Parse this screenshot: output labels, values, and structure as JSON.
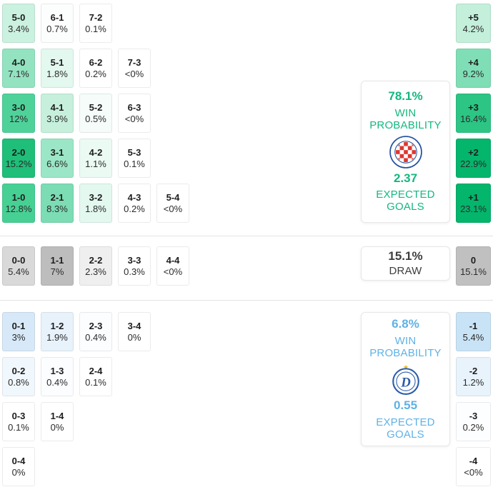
{
  "chart_data": {
    "type": "heatmap",
    "title": "Correct score probability matrix with win probabilities and expected goals",
    "home_win": {
      "win_probability": "78.1%",
      "expected_goals": "2.37",
      "scores": {
        "5-0": "3.4%",
        "6-1": "0.7%",
        "7-2": "0.1%",
        "4-0": "7.1%",
        "5-1": "1.8%",
        "6-2": "0.2%",
        "7-3": "<0%",
        "3-0": "12%",
        "4-1": "3.9%",
        "5-2": "0.5%",
        "6-3": "<0%",
        "2-0": "15.2%",
        "3-1": "6.6%",
        "4-2": "1.1%",
        "5-3": "0.1%",
        "1-0": "12.8%",
        "2-1": "8.3%",
        "3-2": "1.8%",
        "4-3": "0.2%",
        "5-4": "<0%"
      },
      "margins": {
        "+5": "4.2%",
        "+4": "9.2%",
        "+3": "16.4%",
        "+2": "22.9%",
        "+1": "23.1%"
      }
    },
    "draw": {
      "probability": "15.1%",
      "scores": {
        "0-0": "5.4%",
        "1-1": "7%",
        "2-2": "2.3%",
        "3-3": "0.3%",
        "4-4": "<0%"
      },
      "margins": {
        "0": "15.1%"
      }
    },
    "away_win": {
      "win_probability": "6.8%",
      "expected_goals": "0.55",
      "scores": {
        "0-1": "3%",
        "1-2": "1.9%",
        "2-3": "0.4%",
        "3-4": "0%",
        "0-2": "0.8%",
        "1-3": "0.4%",
        "2-4": "0.1%",
        "0-3": "0.1%",
        "1-4": "0%",
        "0-4": "0%"
      },
      "margins": {
        "-1": "5.4%",
        "-2": "1.2%",
        "-3": "0.2%",
        "-4": "<0%"
      }
    }
  },
  "sections": [
    {
      "id": "home-win",
      "rows": [
        {
          "cells": [
            {
              "score": "5-0",
              "pct": "3.4%",
              "bg": "#cbf1e0"
            },
            {
              "score": "6-1",
              "pct": "0.7%",
              "bg": "#fcfefd"
            },
            {
              "score": "7-2",
              "pct": "0.1%",
              "bg": "#ffffff"
            }
          ],
          "margin": {
            "label": "+5",
            "pct": "4.2%",
            "bg": "#c3efdb"
          }
        },
        {
          "cells": [
            {
              "score": "4-0",
              "pct": "7.1%",
              "bg": "#93e3c1"
            },
            {
              "score": "5-1",
              "pct": "1.8%",
              "bg": "#e3f8ef"
            },
            {
              "score": "6-2",
              "pct": "0.2%",
              "bg": "#ffffff"
            },
            {
              "score": "7-3",
              "pct": "<0%",
              "bg": "#ffffff"
            }
          ],
          "margin": {
            "label": "+4",
            "pct": "9.2%",
            "bg": "#7fdeb5"
          }
        },
        {
          "cells": [
            {
              "score": "3-0",
              "pct": "12%",
              "bg": "#4fd29a"
            },
            {
              "score": "4-1",
              "pct": "3.9%",
              "bg": "#c6f0dc"
            },
            {
              "score": "5-2",
              "pct": "0.5%",
              "bg": "#f5fcf9"
            },
            {
              "score": "6-3",
              "pct": "<0%",
              "bg": "#ffffff"
            }
          ],
          "margin": {
            "label": "+3",
            "pct": "16.4%",
            "bg": "#2cc584"
          }
        },
        {
          "cells": [
            {
              "score": "2-0",
              "pct": "15.2%",
              "bg": "#1fbe79"
            },
            {
              "score": "3-1",
              "pct": "6.6%",
              "bg": "#9be6c6"
            },
            {
              "score": "4-2",
              "pct": "1.1%",
              "bg": "#ebfaf3"
            },
            {
              "score": "5-3",
              "pct": "0.1%",
              "bg": "#ffffff"
            }
          ],
          "margin": {
            "label": "+2",
            "pct": "22.9%",
            "bg": "#04b56c"
          }
        },
        {
          "cells": [
            {
              "score": "1-0",
              "pct": "12.8%",
              "bg": "#47d094"
            },
            {
              "score": "2-1",
              "pct": "8.3%",
              "bg": "#7cdcb3"
            },
            {
              "score": "3-2",
              "pct": "1.8%",
              "bg": "#e3f8ef"
            },
            {
              "score": "4-3",
              "pct": "0.2%",
              "bg": "#ffffff"
            },
            {
              "score": "5-4",
              "pct": "<0%",
              "bg": "#ffffff"
            }
          ],
          "margin": {
            "label": "+1",
            "pct": "23.1%",
            "bg": "#04b56c"
          }
        }
      ],
      "panel": {
        "probability": "78.1%",
        "probability_label": "WIN PROBABILITY",
        "team_icon": "hajduk-split-crest",
        "expected": "2.37",
        "expected_label": "EXPECTED GOALS",
        "accent": "#14b87e"
      }
    },
    {
      "id": "draw",
      "rows": [
        {
          "cells": [
            {
              "score": "0-0",
              "pct": "5.4%",
              "bg": "#d9d9d9"
            },
            {
              "score": "1-1",
              "pct": "7%",
              "bg": "#bdbdbd"
            },
            {
              "score": "2-2",
              "pct": "2.3%",
              "bg": "#efefef"
            },
            {
              "score": "3-3",
              "pct": "0.3%",
              "bg": "#ffffff"
            },
            {
              "score": "4-4",
              "pct": "<0%",
              "bg": "#ffffff"
            }
          ],
          "margin": {
            "label": "0",
            "pct": "15.1%",
            "bg": "#c0c0c0"
          }
        }
      ],
      "panel": {
        "probability": "15.1%",
        "probability_label": "DRAW",
        "accent": "#3e3e3e"
      }
    },
    {
      "id": "away-win",
      "rows": [
        {
          "cells": [
            {
              "score": "0-1",
              "pct": "3%",
              "bg": "#d7e9f8"
            },
            {
              "score": "1-2",
              "pct": "1.9%",
              "bg": "#e7f2fb"
            },
            {
              "score": "2-3",
              "pct": "0.4%",
              "bg": "#fbfdff"
            },
            {
              "score": "3-4",
              "pct": "0%",
              "bg": "#ffffff"
            }
          ],
          "margin": {
            "label": "-1",
            "pct": "5.4%",
            "bg": "#c9e3f6"
          }
        },
        {
          "cells": [
            {
              "score": "0-2",
              "pct": "0.8%",
              "bg": "#f1f8fd"
            },
            {
              "score": "1-3",
              "pct": "0.4%",
              "bg": "#fbfdff"
            },
            {
              "score": "2-4",
              "pct": "0.1%",
              "bg": "#ffffff"
            }
          ],
          "margin": {
            "label": "-2",
            "pct": "1.2%",
            "bg": "#e8f3fb"
          }
        },
        {
          "cells": [
            {
              "score": "0-3",
              "pct": "0.1%",
              "bg": "#ffffff"
            },
            {
              "score": "1-4",
              "pct": "0%",
              "bg": "#ffffff"
            }
          ],
          "margin": {
            "label": "-3",
            "pct": "0.2%",
            "bg": "#fdfeff"
          }
        },
        {
          "cells": [
            {
              "score": "0-4",
              "pct": "0%",
              "bg": "#ffffff"
            }
          ],
          "margin": {
            "label": "-4",
            "pct": "<0%",
            "bg": "#ffffff"
          }
        }
      ],
      "panel": {
        "probability": "6.8%",
        "probability_label": "WIN PROBABILITY",
        "team_icon": "dinamo-minsk-crest",
        "expected": "0.55",
        "expected_label": "EXPECTED GOALS",
        "accent": "#5fb2e5"
      }
    }
  ]
}
